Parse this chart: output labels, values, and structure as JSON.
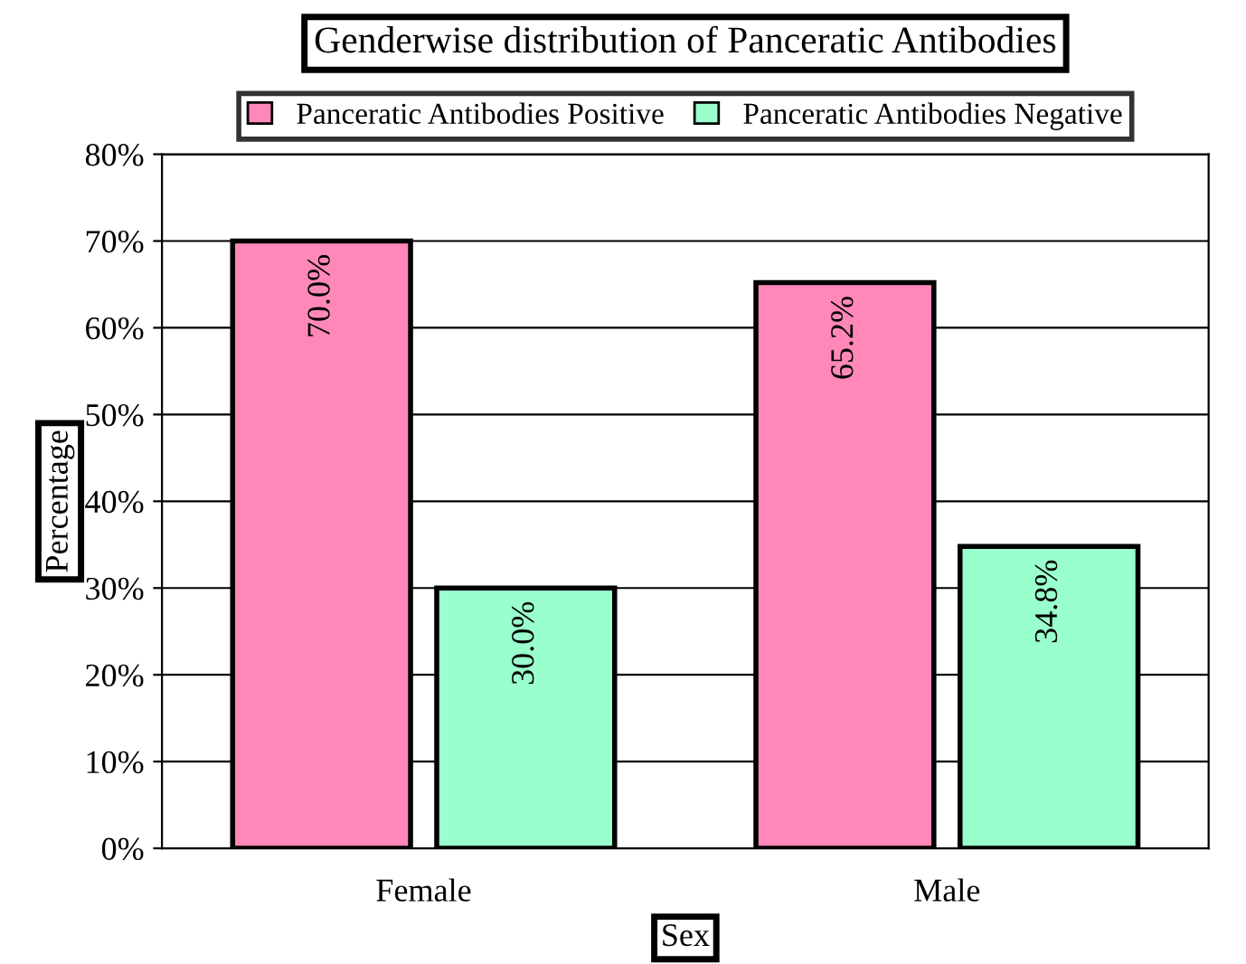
{
  "chart_data": {
    "type": "bar",
    "title": "Genderwise distribution of Panceratic Antibodies",
    "xlabel": "Sex",
    "ylabel": "Percentage",
    "categories": [
      "Female",
      "Male"
    ],
    "series": [
      {
        "name": "Panceratic Antibodies Positive",
        "color": "#ff88b8",
        "values": [
          70.0,
          65.2
        ],
        "value_labels": [
          "70.0%",
          "65.2%"
        ]
      },
      {
        "name": "Panceratic Antibodies Negative",
        "color": "#99ffcc",
        "values": [
          30.0,
          34.8
        ],
        "value_labels": [
          "30.0%",
          "34.8%"
        ]
      }
    ],
    "ylim": [
      0,
      80
    ],
    "yticks": [
      {
        "value": 0,
        "label": "0%"
      },
      {
        "value": 10,
        "label": "10%"
      },
      {
        "value": 20,
        "label": "20%"
      },
      {
        "value": 30,
        "label": "30%"
      },
      {
        "value": 40,
        "label": "40%"
      },
      {
        "value": 50,
        "label": "50%"
      },
      {
        "value": 60,
        "label": "60%"
      },
      {
        "value": 70,
        "label": "70%"
      },
      {
        "value": 80,
        "label": "80%"
      }
    ],
    "grid": "y",
    "legend": "top"
  }
}
